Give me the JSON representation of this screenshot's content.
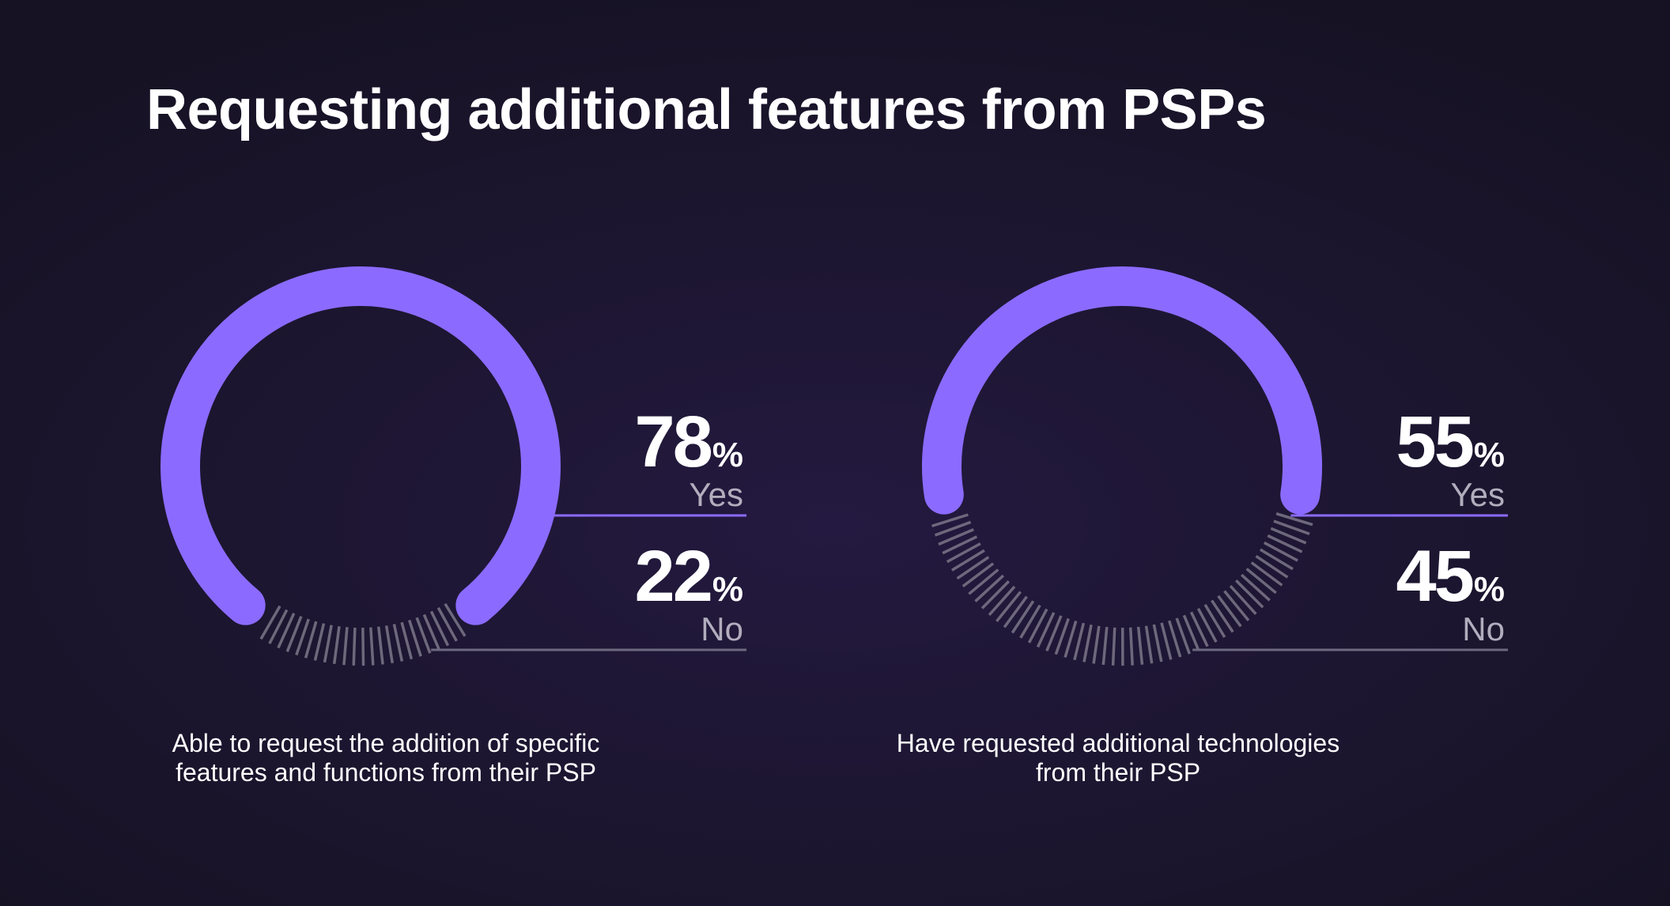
{
  "title": "Requesting additional features from PSPs",
  "colors": {
    "yes": "#8b6bff",
    "no_ticks": "#7d7789",
    "no_line": "#6e6880",
    "background": "#1d1632"
  },
  "chart_data": [
    {
      "type": "donut",
      "caption": "Able to request the addition of specific features and functions from their PSP",
      "slices": [
        {
          "label": "Yes",
          "value": 78,
          "display": "78"
        },
        {
          "label": "No",
          "value": 22,
          "display": "22"
        }
      ],
      "unit": "%"
    },
    {
      "type": "donut",
      "caption": "Have requested additional technologies from their PSP",
      "slices": [
        {
          "label": "Yes",
          "value": 55,
          "display": "55"
        },
        {
          "label": "No",
          "value": 45,
          "display": "45"
        }
      ],
      "unit": "%"
    }
  ]
}
